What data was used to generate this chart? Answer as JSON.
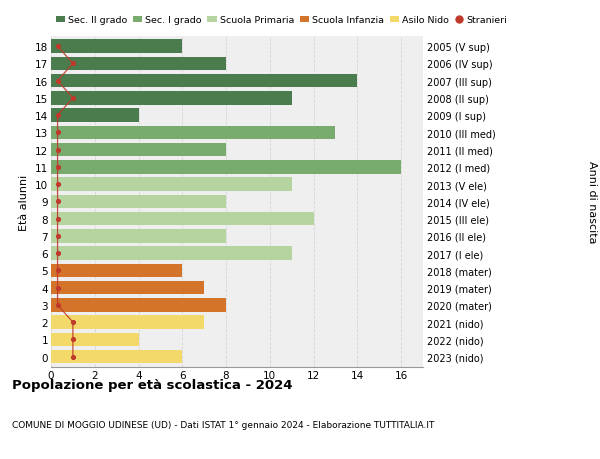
{
  "ages": [
    18,
    17,
    16,
    15,
    14,
    13,
    12,
    11,
    10,
    9,
    8,
    7,
    6,
    5,
    4,
    3,
    2,
    1,
    0
  ],
  "right_labels": [
    "2005 (V sup)",
    "2006 (IV sup)",
    "2007 (III sup)",
    "2008 (II sup)",
    "2009 (I sup)",
    "2010 (III med)",
    "2011 (II med)",
    "2012 (I med)",
    "2013 (V ele)",
    "2014 (IV ele)",
    "2015 (III ele)",
    "2016 (II ele)",
    "2017 (I ele)",
    "2018 (mater)",
    "2019 (mater)",
    "2020 (mater)",
    "2021 (nido)",
    "2022 (nido)",
    "2023 (nido)"
  ],
  "bar_values": [
    6,
    8,
    14,
    11,
    4,
    13,
    8,
    16,
    11,
    8,
    12,
    8,
    11,
    6,
    7,
    8,
    7,
    4,
    6
  ],
  "bar_colors": [
    "#4a7c4e",
    "#4a7c4e",
    "#4a7c4e",
    "#4a7c4e",
    "#4a7c4e",
    "#7aab6e",
    "#7aab6e",
    "#7aab6e",
    "#b5d4a0",
    "#b5d4a0",
    "#b5d4a0",
    "#b5d4a0",
    "#b5d4a0",
    "#d4732a",
    "#d4732a",
    "#d4732a",
    "#f2d96a",
    "#f2d96a",
    "#f2d96a"
  ],
  "stranieri_values": [
    0.3,
    1,
    0.3,
    1,
    0.3,
    0.3,
    0.3,
    0.3,
    0.3,
    0.3,
    0.3,
    0.3,
    0.3,
    0.3,
    0.3,
    0.3,
    1,
    1,
    1
  ],
  "legend_labels": [
    "Sec. II grado",
    "Sec. I grado",
    "Scuola Primaria",
    "Scuola Infanzia",
    "Asilo Nido",
    "Stranieri"
  ],
  "legend_colors": [
    "#4a7c4e",
    "#7aab6e",
    "#b5d4a0",
    "#d4732a",
    "#f2d96a",
    "#c0392b"
  ],
  "title1": "Popolazione per età scolastica - 2024",
  "title2": "COMUNE DI MOGGIO UDINESE (UD) - Dati ISTAT 1° gennaio 2024 - Elaborazione TUTTITALIA.IT",
  "ylabel_left": "Età alunni",
  "ylabel_right": "Anni di nascita",
  "xlim": [
    0,
    17
  ],
  "xticks": [
    0,
    2,
    4,
    6,
    8,
    10,
    12,
    14,
    16
  ],
  "bg_color": "#ffffff",
  "bar_bg_color": "#efefef",
  "grid_color": "#d5d5d5"
}
